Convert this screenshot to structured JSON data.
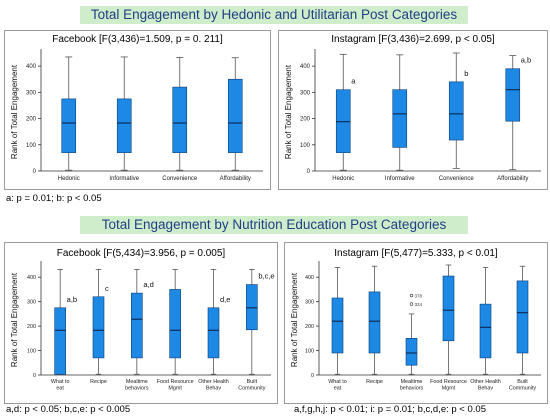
{
  "banners": {
    "top": "Total  Engagement by Hedonic and Utilitarian Post Categories",
    "bottom": "Total  Engagement by Nutrition Education Post Categories"
  },
  "notes": {
    "top_left": "a: p = 0.01; b: p < 0.05",
    "bottom_left": "a,d: p < 0.05; b,c,e: p < 0.005",
    "bottom_right": "a,f,g,h,j: p < 0.01; i: p = 0.01; b,c,d,e: p < 0.05"
  },
  "colors": {
    "box": "#1e88e5",
    "box_edge": "#0b3f79",
    "median": "#0b2f5c",
    "whisker": "#555555"
  },
  "chart_data": [
    {
      "id": "fb1",
      "type": "boxplot",
      "title": "Facebook [F(3,436)=1.509, p = 0. 211]",
      "ylabel": "Rank of Total Engagement",
      "ylim": [
        0,
        450
      ],
      "yticks": [
        0,
        100,
        200,
        300,
        400
      ],
      "grid": false,
      "categories": [
        "Hedonic",
        "Informative",
        "Convenience",
        "Affordability"
      ],
      "boxes": [
        {
          "min": 3,
          "q1": 70,
          "median": 183,
          "q3": 275,
          "max": 435,
          "label": ""
        },
        {
          "min": 3,
          "q1": 70,
          "median": 183,
          "q3": 275,
          "max": 435,
          "label": ""
        },
        {
          "min": 3,
          "q1": 70,
          "median": 183,
          "q3": 320,
          "max": 433,
          "label": ""
        },
        {
          "min": 3,
          "q1": 70,
          "median": 183,
          "q3": 350,
          "max": 432,
          "label": ""
        }
      ],
      "outliers": []
    },
    {
      "id": "ig1",
      "type": "boxplot",
      "title": "Instagram [F(3,436)=2.699, p < 0.05]",
      "ylabel": "Rank of Total Engagement",
      "ylim": [
        0,
        450
      ],
      "yticks": [
        0,
        100,
        200,
        300,
        400
      ],
      "grid": false,
      "categories": [
        "Hedonic",
        "Informative",
        "Convenience",
        "Affordability"
      ],
      "boxes": [
        {
          "min": 3,
          "q1": 70,
          "median": 188,
          "q3": 310,
          "max": 445,
          "label": "a"
        },
        {
          "min": 3,
          "q1": 90,
          "median": 218,
          "q3": 310,
          "max": 443,
          "label": ""
        },
        {
          "min": 10,
          "q1": 118,
          "median": 218,
          "q3": 340,
          "max": 450,
          "label": "b"
        },
        {
          "min": 5,
          "q1": 190,
          "median": 310,
          "q3": 390,
          "max": 440,
          "label": "a,b"
        }
      ],
      "outliers": []
    },
    {
      "id": "fb2",
      "type": "boxplot",
      "title": "Facebook [F(5,434)=3.956, p = 0.005]",
      "ylabel": "Rank of Total Engagement",
      "ylim": [
        0,
        450
      ],
      "yticks": [
        0,
        100,
        200,
        300,
        400
      ],
      "grid": false,
      "categories": [
        "What to eat",
        "Recipe",
        "Mealtime behaviors",
        "Food Resource Mgmt",
        "Other Health Behav",
        "Built Community"
      ],
      "boxes": [
        {
          "min": 3,
          "q1": 3,
          "median": 183,
          "q3": 275,
          "max": 432,
          "label": "a,b"
        },
        {
          "min": 3,
          "q1": 70,
          "median": 183,
          "q3": 320,
          "max": 432,
          "label": "c"
        },
        {
          "min": 3,
          "q1": 70,
          "median": 228,
          "q3": 335,
          "max": 432,
          "label": "a,d"
        },
        {
          "min": 3,
          "q1": 70,
          "median": 183,
          "q3": 350,
          "max": 432,
          "label": ""
        },
        {
          "min": 3,
          "q1": 70,
          "median": 183,
          "q3": 275,
          "max": 432,
          "label": "d,e"
        },
        {
          "min": 3,
          "q1": 185,
          "median": 275,
          "q3": 370,
          "max": 432,
          "label": "b,c,e"
        }
      ],
      "outliers": []
    },
    {
      "id": "ig2",
      "type": "boxplot",
      "title": "Instagram [F(5,477)=5.333, p < 0.01]",
      "ylabel": "Rank of Total Engagement",
      "ylim": [
        0,
        450
      ],
      "yticks": [
        0,
        100,
        200,
        300,
        400
      ],
      "grid": false,
      "categories": [
        "What to eat",
        "Recipe",
        "Mealtime behaviors",
        "Food Resource Mgmt",
        "Other Health Behav",
        "Built Community"
      ],
      "boxes": [
        {
          "min": 3,
          "q1": 90,
          "median": 220,
          "q3": 315,
          "max": 440,
          "label": ""
        },
        {
          "min": 3,
          "q1": 90,
          "median": 220,
          "q3": 340,
          "max": 445,
          "label": ""
        },
        {
          "min": 3,
          "q1": 40,
          "median": 90,
          "q3": 150,
          "max": 250,
          "label": ""
        },
        {
          "min": 3,
          "q1": 140,
          "median": 265,
          "q3": 405,
          "max": 450,
          "label": ""
        },
        {
          "min": 3,
          "q1": 70,
          "median": 195,
          "q3": 290,
          "max": 440,
          "label": ""
        },
        {
          "min": 3,
          "q1": 90,
          "median": 255,
          "q3": 385,
          "max": 445,
          "label": ""
        }
      ],
      "outliers": [
        {
          "category": 2,
          "value": 325,
          "label": "378"
        },
        {
          "category": 2,
          "value": 290,
          "label": "324"
        }
      ]
    }
  ]
}
